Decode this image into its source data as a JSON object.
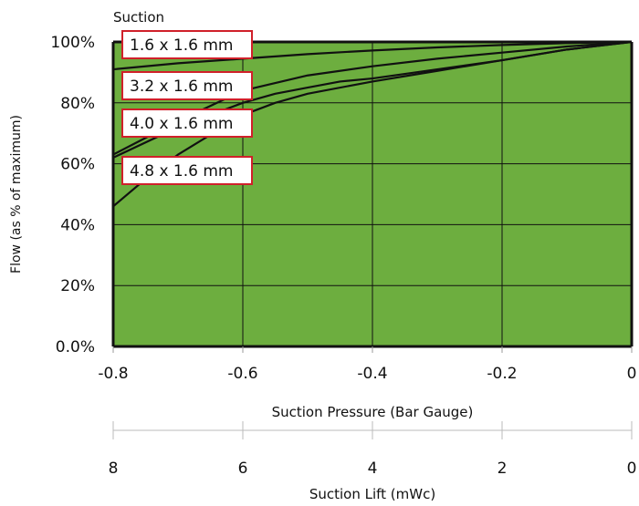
{
  "chart_data": {
    "type": "line",
    "title": "Suction",
    "xlabel": "Suction Pressure (Bar Gauge)",
    "ylabel": "Flow (as % of maximum)",
    "secondary_xlabel": "Suction Lift (mWc)",
    "xlim": [
      -0.8,
      0
    ],
    "ylim": [
      0,
      100
    ],
    "x_ticks": [
      "-0.8",
      "-0.6",
      "-0.4",
      "-0.2",
      "0"
    ],
    "y_ticks": [
      "0.0%",
      "20%",
      "40%",
      "60%",
      "80%",
      "100%"
    ],
    "secondary_x_ticks": [
      "8",
      "6",
      "4",
      "2",
      "0"
    ],
    "grid": true,
    "plot_background": "#6DAE3F",
    "line_color": "#111111",
    "label_border_color": "#D0202A",
    "series": [
      {
        "name": "1.6 x 1.6 mm",
        "x": [
          -0.8,
          -0.7,
          -0.6,
          -0.5,
          -0.4,
          -0.3,
          -0.2,
          -0.1,
          0
        ],
        "y": [
          91,
          93,
          94.5,
          96,
          97.2,
          98.2,
          99,
          99.6,
          100
        ]
      },
      {
        "name": "3.2 x 1.6 mm",
        "x": [
          -0.8,
          -0.7,
          -0.6,
          -0.5,
          -0.4,
          -0.3,
          -0.2,
          -0.1,
          0
        ],
        "y": [
          63,
          74,
          84,
          89,
          92,
          94.5,
          96.5,
          98.5,
          100
        ]
      },
      {
        "name": "4.0 x 1.6 mm",
        "x": [
          -0.8,
          -0.7,
          -0.6,
          -0.55,
          -0.5,
          -0.45,
          -0.4,
          -0.3,
          -0.2,
          -0.1,
          0
        ],
        "y": [
          62,
          72,
          80,
          83,
          85,
          87,
          88,
          91,
          94,
          97.5,
          100
        ]
      },
      {
        "name": "4.8 x 1.6 mm",
        "x": [
          -0.8,
          -0.75,
          -0.7,
          -0.6,
          -0.55,
          -0.5,
          -0.4,
          -0.3,
          -0.2,
          -0.1,
          0
        ],
        "y": [
          46,
          55,
          63,
          76,
          80,
          83,
          87,
          90.5,
          94,
          97.5,
          100
        ]
      }
    ]
  }
}
